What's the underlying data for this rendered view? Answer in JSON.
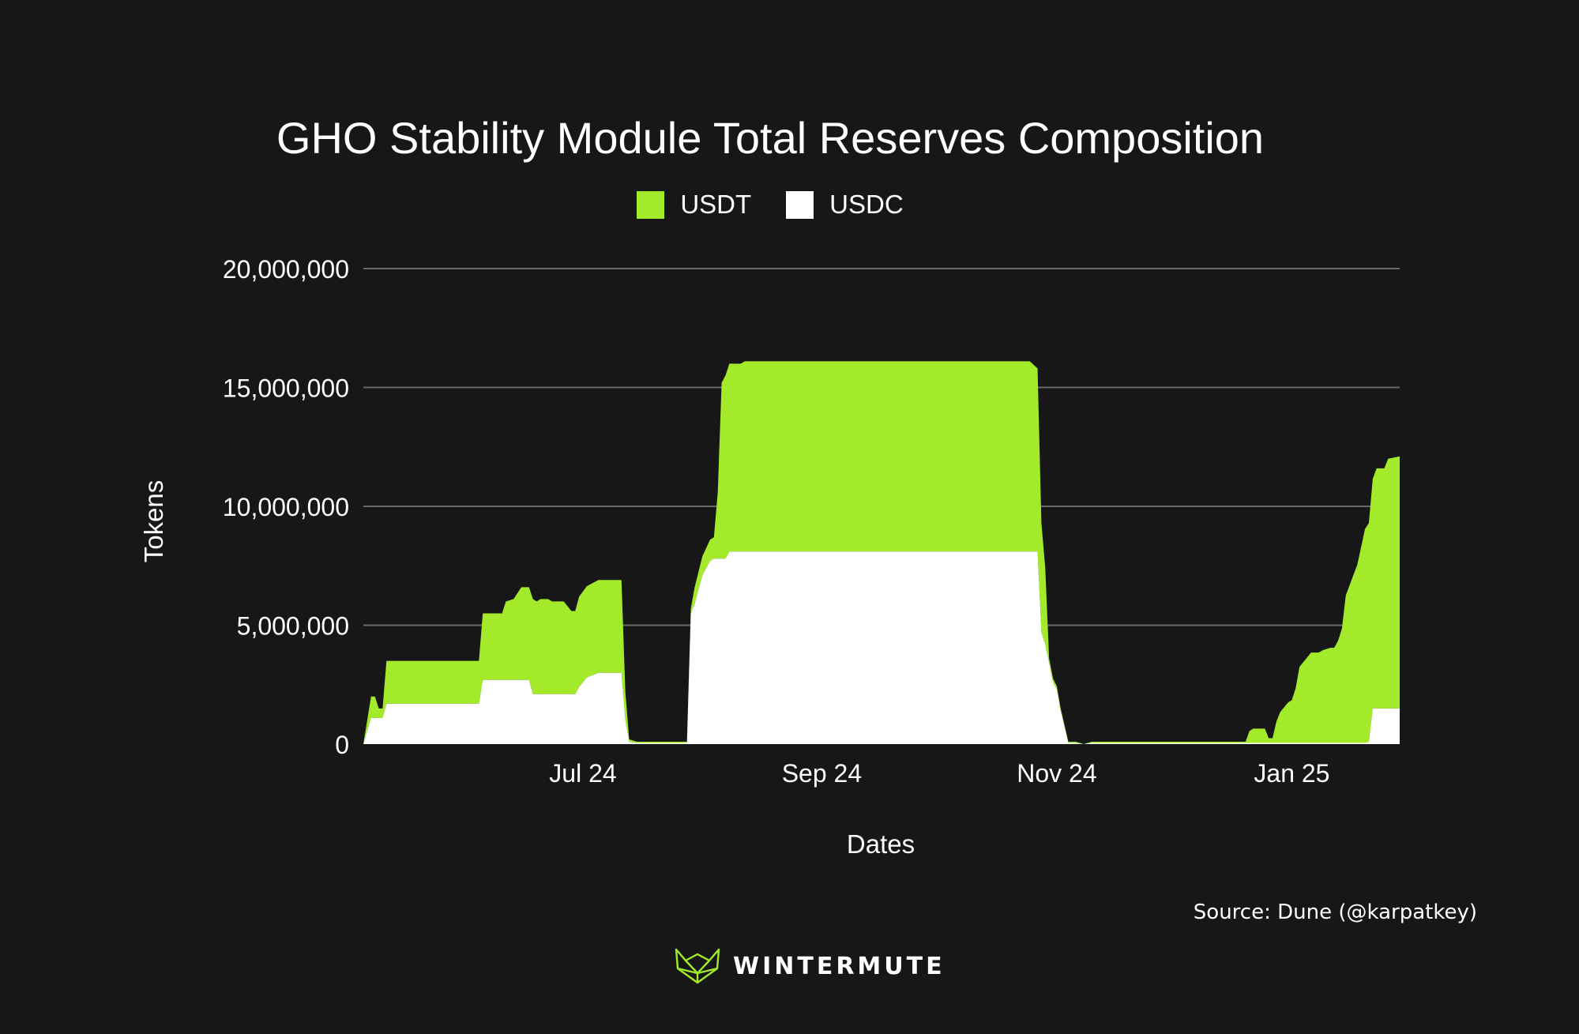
{
  "chart_data": {
    "type": "area",
    "stacked": true,
    "title": "GHO Stability Module Total Reserves Composition",
    "xlabel": "Dates",
    "ylabel": "Tokens",
    "ylim": [
      0,
      20000000
    ],
    "yticks": [
      {
        "value": 0,
        "label": "0"
      },
      {
        "value": 5000000,
        "label": "5,000,000"
      },
      {
        "value": 10000000,
        "label": "10,000,000"
      },
      {
        "value": 15000000,
        "label": "15,000,000"
      },
      {
        "value": 20000000,
        "label": "20,000,000"
      }
    ],
    "xlim": [
      "2024-05-05",
      "2025-01-29"
    ],
    "xticks": [
      {
        "date": "2024-07-01",
        "label": "Jul 24"
      },
      {
        "date": "2024-09-01",
        "label": "Sep 24"
      },
      {
        "date": "2024-11-01",
        "label": "Nov 24"
      },
      {
        "date": "2025-01-01",
        "label": "Jan 25"
      }
    ],
    "grid": true,
    "legend_position": "top",
    "series": [
      {
        "name": "USDT",
        "color": "#a3eb2a",
        "points": [
          [
            "2024-05-05",
            0
          ],
          [
            "2024-05-07",
            900000
          ],
          [
            "2024-05-08",
            900000
          ],
          [
            "2024-05-09",
            400000
          ],
          [
            "2024-05-10",
            400000
          ],
          [
            "2024-05-11",
            1800000
          ],
          [
            "2024-06-04",
            1800000
          ],
          [
            "2024-06-05",
            2800000
          ],
          [
            "2024-06-10",
            2800000
          ],
          [
            "2024-06-11",
            3300000
          ],
          [
            "2024-06-13",
            3400000
          ],
          [
            "2024-06-15",
            3900000
          ],
          [
            "2024-06-17",
            3900000
          ],
          [
            "2024-06-18",
            4000000
          ],
          [
            "2024-06-19",
            3900000
          ],
          [
            "2024-06-20",
            4000000
          ],
          [
            "2024-06-21",
            4000000
          ],
          [
            "2024-06-22",
            4000000
          ],
          [
            "2024-06-23",
            3900000
          ],
          [
            "2024-06-24",
            3900000
          ],
          [
            "2024-06-25",
            3900000
          ],
          [
            "2024-06-26",
            3900000
          ],
          [
            "2024-06-27",
            3700000
          ],
          [
            "2024-06-28",
            3500000
          ],
          [
            "2024-06-29",
            3500000
          ],
          [
            "2024-06-30",
            3800000
          ],
          [
            "2024-07-05",
            3900000
          ],
          [
            "2024-07-11",
            3900000
          ],
          [
            "2024-07-12",
            1200000
          ],
          [
            "2024-07-13",
            100000
          ],
          [
            "2024-07-15",
            50000
          ],
          [
            "2024-07-28",
            50000
          ],
          [
            "2024-07-29",
            200000
          ],
          [
            "2024-07-30",
            700000
          ],
          [
            "2024-08-01",
            800000
          ],
          [
            "2024-08-03",
            900000
          ],
          [
            "2024-08-04",
            900000
          ],
          [
            "2024-08-05",
            2800000
          ],
          [
            "2024-08-06",
            7400000
          ],
          [
            "2024-08-07",
            7700000
          ],
          [
            "2024-08-08",
            7900000
          ],
          [
            "2024-08-11",
            7900000
          ],
          [
            "2024-08-12",
            8000000
          ],
          [
            "2024-08-20",
            8000000
          ],
          [
            "2024-09-15",
            8000000
          ],
          [
            "2024-10-25",
            8000000
          ],
          [
            "2024-10-27",
            7700000
          ],
          [
            "2024-10-28",
            4600000
          ],
          [
            "2024-10-29",
            3200000
          ],
          [
            "2024-10-30",
            200000
          ],
          [
            "2024-11-02",
            100000
          ],
          [
            "2024-11-04",
            50000
          ],
          [
            "2024-11-06",
            50000
          ],
          [
            "2024-11-08",
            0
          ],
          [
            "2024-11-10",
            50000
          ],
          [
            "2024-12-20",
            50000
          ],
          [
            "2024-12-21",
            500000
          ],
          [
            "2024-12-22",
            600000
          ],
          [
            "2024-12-25",
            600000
          ],
          [
            "2024-12-26",
            200000
          ],
          [
            "2024-12-27",
            200000
          ],
          [
            "2024-12-28",
            900000
          ],
          [
            "2024-12-29",
            1300000
          ],
          [
            "2024-12-30",
            1500000
          ],
          [
            "2024-12-31",
            1700000
          ],
          [
            "2025-01-01",
            1800000
          ],
          [
            "2025-01-02",
            2300000
          ],
          [
            "2025-01-03",
            3200000
          ],
          [
            "2025-01-04",
            3400000
          ],
          [
            "2025-01-05",
            3600000
          ],
          [
            "2025-01-06",
            3800000
          ],
          [
            "2025-01-08",
            3800000
          ],
          [
            "2025-01-09",
            3900000
          ],
          [
            "2025-01-11",
            4000000
          ],
          [
            "2025-01-12",
            4000000
          ],
          [
            "2025-01-13",
            4300000
          ],
          [
            "2025-01-14",
            4800000
          ],
          [
            "2025-01-15",
            6200000
          ],
          [
            "2025-01-18",
            7500000
          ],
          [
            "2025-01-20",
            9000000
          ],
          [
            "2025-01-21",
            9200000
          ],
          [
            "2025-01-23",
            10100000
          ],
          [
            "2025-01-25",
            10100000
          ],
          [
            "2025-01-26",
            10500000
          ],
          [
            "2025-01-29",
            10600000
          ]
        ]
      },
      {
        "name": "USDC",
        "color": "#ffffff",
        "points": [
          [
            "2024-05-05",
            0
          ],
          [
            "2024-05-07",
            1100000
          ],
          [
            "2024-05-10",
            1100000
          ],
          [
            "2024-05-11",
            1700000
          ],
          [
            "2024-06-04",
            1700000
          ],
          [
            "2024-06-05",
            2700000
          ],
          [
            "2024-06-17",
            2700000
          ],
          [
            "2024-06-18",
            2100000
          ],
          [
            "2024-06-29",
            2100000
          ],
          [
            "2024-06-30",
            2400000
          ],
          [
            "2024-07-02",
            2800000
          ],
          [
            "2024-07-05",
            3000000
          ],
          [
            "2024-07-11",
            3000000
          ],
          [
            "2024-07-12",
            1000000
          ],
          [
            "2024-07-13",
            100000
          ],
          [
            "2024-07-15",
            50000
          ],
          [
            "2024-07-28",
            50000
          ],
          [
            "2024-07-29",
            5500000
          ],
          [
            "2024-07-30",
            5900000
          ],
          [
            "2024-08-01",
            7100000
          ],
          [
            "2024-08-03",
            7700000
          ],
          [
            "2024-08-04",
            7800000
          ],
          [
            "2024-08-07",
            7800000
          ],
          [
            "2024-08-08",
            8100000
          ],
          [
            "2024-10-27",
            8100000
          ],
          [
            "2024-10-28",
            4700000
          ],
          [
            "2024-10-29",
            4200000
          ],
          [
            "2024-10-31",
            2600000
          ],
          [
            "2024-11-01",
            2300000
          ],
          [
            "2024-11-02",
            1400000
          ],
          [
            "2024-11-04",
            50000
          ],
          [
            "2024-11-06",
            50000
          ],
          [
            "2024-11-08",
            0
          ],
          [
            "2024-11-10",
            50000
          ],
          [
            "2025-01-20",
            50000
          ],
          [
            "2025-01-21",
            100000
          ],
          [
            "2025-01-22",
            1500000
          ],
          [
            "2025-01-29",
            1500000
          ]
        ]
      }
    ],
    "source": "Source: Dune (@karpatkey)"
  },
  "brand": {
    "name": "WINTERMUTE",
    "logo_icon": "wintermute-fox-logo-icon",
    "color": "#a3eb2a"
  }
}
